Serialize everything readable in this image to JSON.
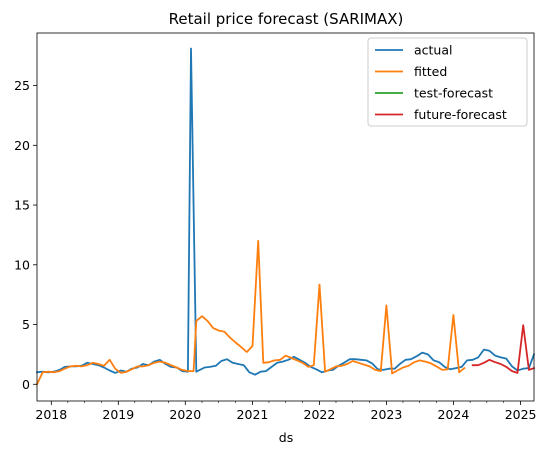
{
  "chart_data": {
    "type": "line",
    "title": "Retail price forecast (SARIMAX)",
    "xlabel": "ds",
    "ylabel": "",
    "xlim": [
      "2017-10-15",
      "2025-03-15"
    ],
    "ylim": [
      -1.4,
      29.4
    ],
    "grid": false,
    "legend_position": "top-right",
    "x_ticks": [
      {
        "label": "2018",
        "value": "2018-01-01"
      },
      {
        "label": "2019",
        "value": "2019-01-01"
      },
      {
        "label": "2020",
        "value": "2020-01-01"
      },
      {
        "label": "2021",
        "value": "2021-01-01"
      },
      {
        "label": "2022",
        "value": "2022-01-01"
      },
      {
        "label": "2023",
        "value": "2023-01-01"
      },
      {
        "label": "2024",
        "value": "2024-01-01"
      },
      {
        "label": "2025",
        "value": "2025-01-01"
      }
    ],
    "y_ticks": [
      0,
      5,
      10,
      15,
      20,
      25
    ],
    "series": [
      {
        "name": "actual",
        "color": "#1f77b4",
        "points": [
          [
            "2017-10-15",
            1.0
          ],
          [
            "2017-11-15",
            1.05
          ],
          [
            "2017-12-15",
            1.0
          ],
          [
            "2018-01-15",
            1.05
          ],
          [
            "2018-02-15",
            1.2
          ],
          [
            "2018-03-15",
            1.45
          ],
          [
            "2018-04-15",
            1.5
          ],
          [
            "2018-05-15",
            1.5
          ],
          [
            "2018-06-15",
            1.55
          ],
          [
            "2018-07-15",
            1.8
          ],
          [
            "2018-08-15",
            1.7
          ],
          [
            "2018-09-15",
            1.6
          ],
          [
            "2018-10-15",
            1.4
          ],
          [
            "2018-11-15",
            1.15
          ],
          [
            "2018-12-15",
            0.95
          ],
          [
            "2019-01-15",
            1.15
          ],
          [
            "2019-02-15",
            1.05
          ],
          [
            "2019-03-15",
            1.3
          ],
          [
            "2019-04-15",
            1.4
          ],
          [
            "2019-05-15",
            1.7
          ],
          [
            "2019-06-15",
            1.6
          ],
          [
            "2019-07-15",
            1.9
          ],
          [
            "2019-08-15",
            2.05
          ],
          [
            "2019-09-15",
            1.7
          ],
          [
            "2019-10-15",
            1.45
          ],
          [
            "2019-11-15",
            1.4
          ],
          [
            "2019-12-15",
            1.1
          ],
          [
            "2020-01-15",
            1.05
          ],
          [
            "2020-02-01",
            28.1
          ],
          [
            "2020-03-01",
            1.05
          ],
          [
            "2020-04-15",
            1.4
          ],
          [
            "2020-05-15",
            1.45
          ],
          [
            "2020-06-15",
            1.55
          ],
          [
            "2020-07-15",
            1.95
          ],
          [
            "2020-08-15",
            2.1
          ],
          [
            "2020-09-15",
            1.8
          ],
          [
            "2020-10-15",
            1.7
          ],
          [
            "2020-11-15",
            1.6
          ],
          [
            "2020-12-15",
            1.0
          ],
          [
            "2021-01-15",
            0.8
          ],
          [
            "2021-02-15",
            1.05
          ],
          [
            "2021-03-15",
            1.1
          ],
          [
            "2021-04-15",
            1.45
          ],
          [
            "2021-05-15",
            1.8
          ],
          [
            "2021-06-15",
            1.9
          ],
          [
            "2021-07-15",
            2.05
          ],
          [
            "2021-08-15",
            2.3
          ],
          [
            "2021-09-15",
            2.05
          ],
          [
            "2021-10-15",
            1.8
          ],
          [
            "2021-11-15",
            1.45
          ],
          [
            "2021-12-15",
            1.25
          ],
          [
            "2022-01-15",
            1.0
          ],
          [
            "2022-02-15",
            1.15
          ],
          [
            "2022-03-15",
            1.2
          ],
          [
            "2022-04-15",
            1.55
          ],
          [
            "2022-05-15",
            1.8
          ],
          [
            "2022-06-15",
            2.1
          ],
          [
            "2022-07-15",
            2.1
          ],
          [
            "2022-08-15",
            2.05
          ],
          [
            "2022-09-15",
            2.0
          ],
          [
            "2022-10-15",
            1.75
          ],
          [
            "2022-11-15",
            1.25
          ],
          [
            "2022-12-15",
            1.2
          ],
          [
            "2023-01-15",
            1.3
          ],
          [
            "2023-02-15",
            1.3
          ],
          [
            "2023-03-15",
            1.7
          ],
          [
            "2023-04-15",
            2.05
          ],
          [
            "2023-05-15",
            2.1
          ],
          [
            "2023-06-15",
            2.35
          ],
          [
            "2023-07-15",
            2.65
          ],
          [
            "2023-08-15",
            2.5
          ],
          [
            "2023-09-15",
            2.0
          ],
          [
            "2023-10-15",
            1.85
          ],
          [
            "2023-11-15",
            1.45
          ],
          [
            "2023-12-15",
            1.25
          ],
          [
            "2024-01-15",
            1.35
          ],
          [
            "2024-02-15",
            1.45
          ],
          [
            "2024-03-15",
            2.0
          ],
          [
            "2024-04-15",
            2.05
          ],
          [
            "2024-05-15",
            2.25
          ],
          [
            "2024-06-15",
            2.9
          ],
          [
            "2024-07-15",
            2.8
          ],
          [
            "2024-08-15",
            2.4
          ],
          [
            "2024-09-15",
            2.25
          ],
          [
            "2024-10-15",
            2.15
          ],
          [
            "2024-11-15",
            1.5
          ],
          [
            "2024-12-15",
            1.15
          ],
          [
            "2025-01-15",
            1.3
          ],
          [
            "2025-02-15",
            1.35
          ],
          [
            "2025-03-15",
            2.5
          ]
        ]
      },
      {
        "name": "fitted",
        "color": "#ff7f0e",
        "points": [
          [
            "2017-10-15",
            0.0
          ],
          [
            "2017-11-15",
            1.0
          ],
          [
            "2017-12-15",
            1.05
          ],
          [
            "2018-01-15",
            1.0
          ],
          [
            "2018-02-15",
            1.1
          ],
          [
            "2018-03-15",
            1.3
          ],
          [
            "2018-04-15",
            1.5
          ],
          [
            "2018-05-15",
            1.55
          ],
          [
            "2018-06-15",
            1.5
          ],
          [
            "2018-07-15",
            1.6
          ],
          [
            "2018-08-15",
            1.8
          ],
          [
            "2018-09-15",
            1.7
          ],
          [
            "2018-10-15",
            1.55
          ],
          [
            "2018-11-15",
            2.05
          ],
          [
            "2018-12-15",
            1.3
          ],
          [
            "2019-01-15",
            0.95
          ],
          [
            "2019-02-15",
            1.05
          ],
          [
            "2019-03-15",
            1.25
          ],
          [
            "2019-04-15",
            1.5
          ],
          [
            "2019-05-15",
            1.5
          ],
          [
            "2019-06-15",
            1.6
          ],
          [
            "2019-07-15",
            1.8
          ],
          [
            "2019-08-15",
            1.9
          ],
          [
            "2019-09-15",
            1.8
          ],
          [
            "2019-10-15",
            1.6
          ],
          [
            "2019-11-15",
            1.4
          ],
          [
            "2019-12-15",
            1.2
          ],
          [
            "2020-01-15",
            1.1
          ],
          [
            "2020-02-15",
            1.1
          ],
          [
            "2020-03-01",
            5.3
          ],
          [
            "2020-04-01",
            5.7
          ],
          [
            "2020-05-01",
            5.3
          ],
          [
            "2020-06-01",
            4.7
          ],
          [
            "2020-07-01",
            4.5
          ],
          [
            "2020-08-01",
            4.4
          ],
          [
            "2020-09-01",
            3.9
          ],
          [
            "2020-10-01",
            3.5
          ],
          [
            "2020-11-01",
            3.1
          ],
          [
            "2020-12-01",
            2.7
          ],
          [
            "2021-01-01",
            3.2
          ],
          [
            "2021-02-01",
            12.0
          ],
          [
            "2021-03-01",
            1.8
          ],
          [
            "2021-04-01",
            1.85
          ],
          [
            "2021-05-01",
            2.0
          ],
          [
            "2021-06-01",
            2.05
          ],
          [
            "2021-07-01",
            2.4
          ],
          [
            "2021-08-01",
            2.2
          ],
          [
            "2021-09-01",
            2.0
          ],
          [
            "2021-10-01",
            1.8
          ],
          [
            "2021-11-01",
            1.45
          ],
          [
            "2021-12-01",
            1.6
          ],
          [
            "2022-01-01",
            8.35
          ],
          [
            "2022-02-01",
            1.05
          ],
          [
            "2022-03-01",
            1.25
          ],
          [
            "2022-04-01",
            1.5
          ],
          [
            "2022-05-01",
            1.55
          ],
          [
            "2022-06-01",
            1.7
          ],
          [
            "2022-07-01",
            1.95
          ],
          [
            "2022-08-01",
            1.8
          ],
          [
            "2022-09-01",
            1.65
          ],
          [
            "2022-10-01",
            1.5
          ],
          [
            "2022-11-01",
            1.2
          ],
          [
            "2022-12-01",
            1.1
          ],
          [
            "2023-01-01",
            6.6
          ],
          [
            "2023-02-01",
            0.9
          ],
          [
            "2023-03-01",
            1.15
          ],
          [
            "2023-04-01",
            1.4
          ],
          [
            "2023-05-01",
            1.55
          ],
          [
            "2023-06-01",
            1.85
          ],
          [
            "2023-07-01",
            2.0
          ],
          [
            "2023-08-01",
            1.9
          ],
          [
            "2023-09-01",
            1.75
          ],
          [
            "2023-10-01",
            1.5
          ],
          [
            "2023-11-01",
            1.2
          ],
          [
            "2023-12-01",
            1.25
          ],
          [
            "2024-01-01",
            5.8
          ],
          [
            "2024-02-01",
            1.0
          ],
          [
            "2024-03-01",
            1.35
          ]
        ]
      },
      {
        "name": "test-forecast",
        "color": "#2ca02c",
        "points": []
      },
      {
        "name": "future-forecast",
        "color": "#d62728",
        "points": [
          [
            "2024-04-15",
            1.6
          ],
          [
            "2024-05-15",
            1.6
          ],
          [
            "2024-06-15",
            1.8
          ],
          [
            "2024-07-15",
            2.05
          ],
          [
            "2024-08-15",
            1.85
          ],
          [
            "2024-09-15",
            1.7
          ],
          [
            "2024-10-15",
            1.45
          ],
          [
            "2024-11-15",
            1.1
          ],
          [
            "2024-12-15",
            0.95
          ],
          [
            "2025-01-15",
            4.95
          ],
          [
            "2025-02-15",
            1.2
          ],
          [
            "2025-03-15",
            1.35
          ]
        ]
      }
    ]
  }
}
